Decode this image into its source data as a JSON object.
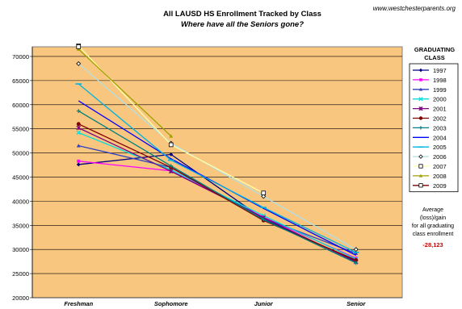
{
  "source_credit": "www.westchesterparents.org",
  "legend_title_lines": [
    "GRADUATING",
    "CLASS"
  ],
  "note_lines": [
    "Average",
    "(loss)/gain",
    "for all graduating",
    "class enrollment"
  ],
  "note_value": "-28,123",
  "chart_data": {
    "type": "line",
    "title": "All LAUSD HS Enrollment Tracked by Class",
    "subtitle": "Where have all the Seniors gone?",
    "categories": [
      "Freshman",
      "Sophomore",
      "Junior",
      "Senior"
    ],
    "ylim": [
      20000,
      72000
    ],
    "yticks": [
      20000,
      25000,
      30000,
      35000,
      40000,
      45000,
      50000,
      55000,
      60000,
      65000,
      70000
    ],
    "ytick_labels": [
      "20000",
      "25000",
      "30000",
      "35000",
      "40000",
      "45000",
      "50000",
      "55000",
      "60000",
      "65000",
      "70000"
    ],
    "grid": true,
    "legend_position": "right",
    "plot_background": "#f8c67f",
    "series": [
      {
        "name": "1997",
        "color": "#000080",
        "marker": "diamond",
        "values": [
          47600,
          49700,
          36300,
          27600
        ]
      },
      {
        "name": "1998",
        "color": "#ff00ff",
        "marker": "square",
        "values": [
          48300,
          46300,
          36700,
          28200
        ]
      },
      {
        "name": "1999",
        "color": "#3040c0",
        "marker": "triangle",
        "values": [
          51500,
          47000,
          36500,
          29200
        ]
      },
      {
        "name": "2000",
        "color": "#00dddd",
        "marker": "x",
        "values": [
          54200,
          46500,
          37000,
          28000
        ]
      },
      {
        "name": "2001",
        "color": "#800080",
        "marker": "star",
        "values": [
          55200,
          46200,
          36600,
          27400
        ]
      },
      {
        "name": "2002",
        "color": "#800000",
        "marker": "circle",
        "values": [
          56000,
          47000,
          36000,
          27800
        ]
      },
      {
        "name": "2003",
        "color": "#008080",
        "marker": "plus",
        "values": [
          58700,
          47300,
          36200,
          27200
        ]
      },
      {
        "name": "2004",
        "color": "#0000ff",
        "marker": "none",
        "values": [
          60800,
          48800,
          38500,
          28800
        ]
      },
      {
        "name": "2005",
        "color": "#00b4e0",
        "marker": "dash",
        "values": [
          64300,
          48500,
          38700,
          29400
        ]
      },
      {
        "name": "2006",
        "color": "#b0e0e6",
        "marker": "diamond-open",
        "values": [
          68500,
          52000,
          41000,
          30000
        ]
      },
      {
        "name": "2007",
        "color": "#ffffaa",
        "marker": "square-open",
        "values": [
          72200,
          51700,
          41700,
          null
        ]
      },
      {
        "name": "2008",
        "color": "#a0a000",
        "marker": "triangle",
        "values": [
          71500,
          53500,
          null,
          null
        ]
      },
      {
        "name": "2009",
        "color": "#800000",
        "marker": "square-open",
        "values": [
          72000,
          null,
          null,
          null
        ]
      }
    ]
  }
}
